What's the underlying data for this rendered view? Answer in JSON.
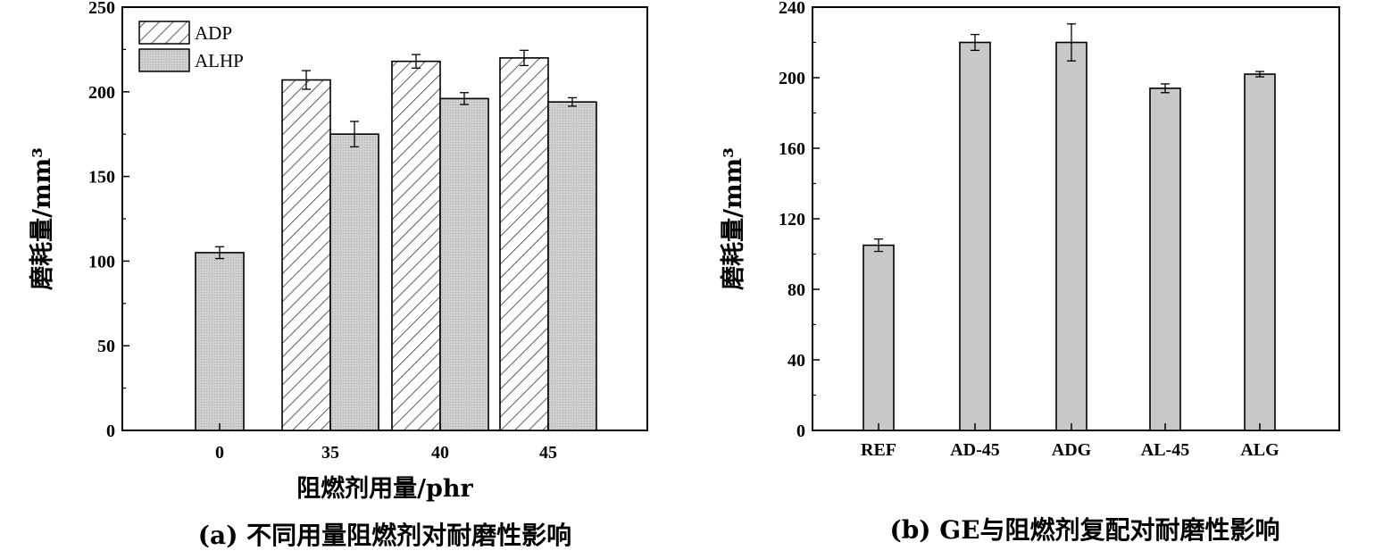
{
  "colors": {
    "bar_fill": "#c8c8c8",
    "axis": "#000000",
    "hatch": "#333333"
  },
  "chart_data": [
    {
      "type": "bar",
      "categories": [
        "0",
        "35",
        "40",
        "45"
      ],
      "series": [
        {
          "name": "ADP",
          "pattern": "hatch",
          "values": [
            null,
            207,
            218,
            220
          ],
          "errors": [
            null,
            5.5,
            4,
            4.5
          ]
        },
        {
          "name": "ALHP",
          "pattern": "dotted-gray",
          "values": [
            105,
            175,
            196,
            194
          ],
          "errors": [
            3.5,
            7.5,
            3.5,
            2.5
          ]
        }
      ],
      "ylim": [
        0,
        250
      ],
      "yticks": [
        "0",
        "50",
        "100",
        "150",
        "200",
        "250"
      ],
      "ylabel": "磨耗量/mm³",
      "xlabel": "阻燃剂用量/phr",
      "legend": "top-left",
      "caption": "(a) 不同用量阻燃剂对耐磨性影响"
    },
    {
      "type": "bar",
      "categories": [
        "REF",
        "AD-45",
        "ADG",
        "AL-45",
        "ALG"
      ],
      "series": [
        {
          "values": [
            105,
            220,
            220,
            194,
            202
          ],
          "errors": [
            3.5,
            4.5,
            10.5,
            2.5,
            1.5
          ]
        }
      ],
      "ylim": [
        0,
        240
      ],
      "yticks": [
        "0",
        "40",
        "80",
        "120",
        "160",
        "200",
        "240"
      ],
      "ylabel": "磨耗量/mm³",
      "caption": "(b) GE与阻燃剂复配对耐磨性影响"
    }
  ]
}
